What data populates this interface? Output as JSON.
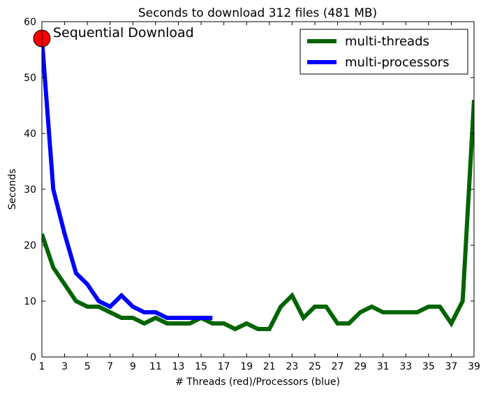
{
  "chart_data": {
    "type": "line",
    "title": "Seconds to download 312 files (481 MB)",
    "xlabel": "# Threads (red)/Processors (blue)",
    "ylabel": "Seconds",
    "xlim": [
      1,
      39
    ],
    "ylim": [
      0,
      60
    ],
    "x_ticks": [
      1,
      3,
      5,
      7,
      9,
      11,
      13,
      15,
      17,
      19,
      21,
      23,
      25,
      27,
      29,
      31,
      33,
      35,
      37,
      39
    ],
    "y_ticks": [
      0,
      10,
      20,
      30,
      40,
      50,
      60
    ],
    "grid": false,
    "legend_position": "top-right",
    "series": [
      {
        "name": "multi-threads",
        "color": "#006400",
        "x": [
          1,
          2,
          3,
          4,
          5,
          6,
          7,
          8,
          9,
          10,
          11,
          12,
          13,
          14,
          15,
          16,
          17,
          18,
          19,
          20,
          21,
          22,
          23,
          24,
          25,
          26,
          27,
          28,
          29,
          30,
          31,
          32,
          33,
          34,
          35,
          36,
          37,
          38,
          39
        ],
        "values": [
          22,
          16,
          13,
          10,
          9,
          9,
          8,
          7,
          7,
          6,
          7,
          6,
          6,
          6,
          7,
          6,
          6,
          5,
          6,
          5,
          5,
          9,
          11,
          7,
          9,
          9,
          6,
          6,
          8,
          9,
          8,
          8,
          8,
          8,
          9,
          9,
          6,
          10,
          46
        ]
      },
      {
        "name": "multi-processors",
        "color": "#0000ff",
        "x": [
          1,
          2,
          3,
          4,
          5,
          6,
          7,
          8,
          9,
          10,
          11,
          12,
          13,
          14,
          15,
          16
        ],
        "values": [
          57,
          30,
          22,
          15,
          13,
          10,
          9,
          11,
          9,
          8,
          8,
          7,
          7,
          7,
          7,
          7
        ]
      }
    ],
    "annotation": {
      "text": "Sequential Download",
      "x": 1,
      "y": 57,
      "marker_color": "#ff0000"
    }
  }
}
